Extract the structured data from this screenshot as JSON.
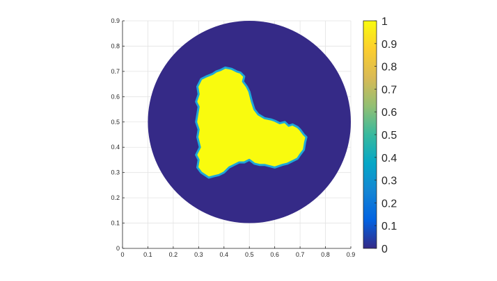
{
  "chart_data": {
    "type": "heatmap",
    "title": "",
    "xlabel": "",
    "ylabel": "",
    "xlim": [
      0,
      0.9
    ],
    "ylim": [
      0,
      0.9
    ],
    "x_ticks": [
      "0",
      "0.1",
      "0.2",
      "0.3",
      "0.4",
      "0.5",
      "0.6",
      "0.7",
      "0.8",
      "0.9"
    ],
    "y_ticks": [
      "0",
      "0.1",
      "0.2",
      "0.3",
      "0.4",
      "0.5",
      "0.6",
      "0.7",
      "0.8",
      "0.9"
    ],
    "grid": true,
    "domain": {
      "shape": "disk",
      "center": [
        0.5,
        0.5
      ],
      "radius": 0.4,
      "value": 0
    },
    "region": {
      "value": 1,
      "boundary": [
        [
          0.34,
          0.28
        ],
        [
          0.31,
          0.3
        ],
        [
          0.295,
          0.32
        ],
        [
          0.3,
          0.35
        ],
        [
          0.29,
          0.37
        ],
        [
          0.305,
          0.4
        ],
        [
          0.295,
          0.44
        ],
        [
          0.3,
          0.47
        ],
        [
          0.29,
          0.5
        ],
        [
          0.295,
          0.53
        ],
        [
          0.3,
          0.56
        ],
        [
          0.29,
          0.58
        ],
        [
          0.3,
          0.61
        ],
        [
          0.295,
          0.64
        ],
        [
          0.31,
          0.67
        ],
        [
          0.33,
          0.68
        ],
        [
          0.355,
          0.69
        ],
        [
          0.37,
          0.7
        ],
        [
          0.385,
          0.705
        ],
        [
          0.405,
          0.715
        ],
        [
          0.43,
          0.71
        ],
        [
          0.45,
          0.7
        ],
        [
          0.465,
          0.695
        ],
        [
          0.48,
          0.68
        ],
        [
          0.475,
          0.66
        ],
        [
          0.49,
          0.64
        ],
        [
          0.5,
          0.62
        ],
        [
          0.51,
          0.58
        ],
        [
          0.52,
          0.55
        ],
        [
          0.535,
          0.53
        ],
        [
          0.56,
          0.515
        ],
        [
          0.585,
          0.51
        ],
        [
          0.6,
          0.505
        ],
        [
          0.62,
          0.495
        ],
        [
          0.64,
          0.5
        ],
        [
          0.655,
          0.485
        ],
        [
          0.67,
          0.49
        ],
        [
          0.69,
          0.48
        ],
        [
          0.7,
          0.47
        ],
        [
          0.715,
          0.45
        ],
        [
          0.725,
          0.44
        ],
        [
          0.72,
          0.42
        ],
        [
          0.715,
          0.39
        ],
        [
          0.7,
          0.37
        ],
        [
          0.69,
          0.355
        ],
        [
          0.67,
          0.345
        ],
        [
          0.65,
          0.335
        ],
        [
          0.63,
          0.33
        ],
        [
          0.6,
          0.32
        ],
        [
          0.58,
          0.325
        ],
        [
          0.56,
          0.33
        ],
        [
          0.54,
          0.33
        ],
        [
          0.52,
          0.335
        ],
        [
          0.5,
          0.35
        ],
        [
          0.48,
          0.34
        ],
        [
          0.46,
          0.34
        ],
        [
          0.44,
          0.33
        ],
        [
          0.42,
          0.32
        ],
        [
          0.4,
          0.3
        ],
        [
          0.38,
          0.29
        ],
        [
          0.36,
          0.285
        ]
      ]
    },
    "colorbar": {
      "min": 0,
      "max": 1,
      "ticks": [
        "0",
        "0.1",
        "0.2",
        "0.3",
        "0.4",
        "0.5",
        "0.6",
        "0.7",
        "0.8",
        "0.9",
        "1"
      ],
      "colormap": [
        "#352a87",
        "#0363e1",
        "#1485d4",
        "#06a7c6",
        "#38b99e",
        "#92bf73",
        "#d9ba56",
        "#fcce2e",
        "#f9fb0e"
      ]
    },
    "colors": {
      "low": "#352a87",
      "high": "#f9fb0e",
      "edge": "#1fa8d8"
    }
  }
}
